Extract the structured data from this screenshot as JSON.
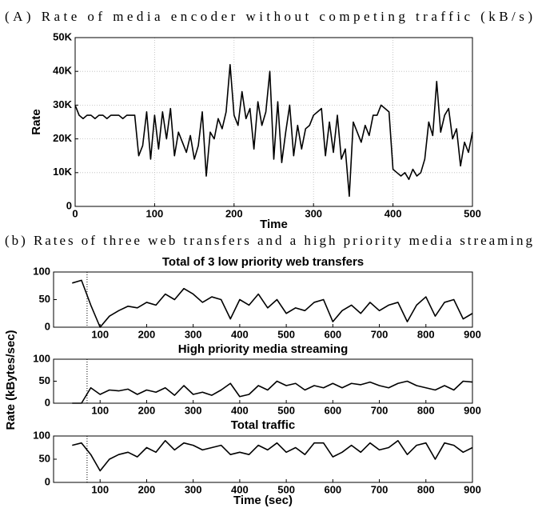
{
  "captions": [
    "(A) Rate of media encoder without competing traffic (kB/s)",
    "(b) Rates of three web transfers and a high priority media streaming"
  ],
  "chart_data": [
    {
      "type": "line",
      "xlabel": "Time",
      "ylabel": "Rate",
      "grid": true,
      "color": "#000000",
      "xlim": [
        0,
        500
      ],
      "xticks": [
        0,
        100,
        200,
        300,
        400,
        500
      ],
      "ylim": [
        0,
        50000
      ],
      "yticks": [
        0,
        {
          "value": 10000,
          "label": "10K"
        },
        {
          "value": 20000,
          "label": "20K"
        },
        {
          "value": 30000,
          "label": "30K"
        },
        {
          "value": 40000,
          "label": "40K"
        },
        {
          "value": 50000,
          "label": "50K"
        }
      ],
      "x": [
        0,
        5,
        10,
        15,
        20,
        25,
        30,
        35,
        40,
        45,
        50,
        55,
        60,
        65,
        70,
        75,
        80,
        85,
        90,
        95,
        100,
        105,
        110,
        115,
        120,
        125,
        130,
        135,
        140,
        145,
        150,
        155,
        160,
        165,
        170,
        175,
        180,
        185,
        190,
        195,
        200,
        205,
        210,
        215,
        220,
        225,
        230,
        235,
        240,
        245,
        250,
        255,
        260,
        265,
        270,
        275,
        280,
        285,
        290,
        295,
        300,
        305,
        310,
        315,
        320,
        325,
        330,
        335,
        340,
        345,
        350,
        355,
        360,
        365,
        370,
        375,
        380,
        385,
        390,
        395,
        400,
        405,
        410,
        415,
        420,
        425,
        430,
        435,
        440,
        445,
        450,
        455,
        460,
        465,
        470,
        475,
        480,
        485,
        490,
        495,
        500
      ],
      "values": [
        30000,
        27000,
        26000,
        27000,
        27000,
        26000,
        27000,
        27000,
        26000,
        27000,
        27000,
        27000,
        26000,
        27000,
        27000,
        27000,
        15000,
        18000,
        28000,
        14000,
        27000,
        17000,
        28000,
        20000,
        29000,
        15000,
        22000,
        19000,
        16000,
        21000,
        14000,
        18000,
        28000,
        9000,
        22000,
        20000,
        26000,
        23000,
        28000,
        42000,
        27000,
        24000,
        34000,
        26000,
        29000,
        17000,
        31000,
        24000,
        28000,
        40000,
        14000,
        31000,
        13000,
        22000,
        30000,
        15000,
        24000,
        17000,
        23000,
        24000,
        27000,
        28000,
        29000,
        15000,
        25000,
        16000,
        27000,
        14000,
        17000,
        3000,
        25000,
        22000,
        19000,
        24000,
        21000,
        27000,
        27000,
        30000,
        29000,
        28000,
        11000,
        10000,
        9000,
        10000,
        8000,
        11000,
        9000,
        10000,
        14000,
        25000,
        21000,
        37000,
        22000,
        27000,
        29000,
        20000,
        23000,
        12000,
        19000,
        16000,
        22000
      ]
    },
    {
      "type": "line",
      "title": "Total of 3 low priority web transfers",
      "color": "#000000",
      "vline": 72,
      "xlim": [
        0,
        900
      ],
      "xticks": [
        100,
        200,
        300,
        400,
        500,
        600,
        700,
        800,
        900
      ],
      "ylim": [
        0,
        100
      ],
      "yticks": [
        0,
        50,
        100
      ],
      "x": [
        40,
        60,
        80,
        100,
        120,
        140,
        160,
        180,
        200,
        220,
        240,
        260,
        280,
        300,
        320,
        340,
        360,
        380,
        400,
        420,
        440,
        460,
        480,
        500,
        520,
        540,
        560,
        580,
        600,
        620,
        640,
        660,
        680,
        700,
        720,
        740,
        760,
        780,
        800,
        820,
        840,
        860,
        880,
        900
      ],
      "values": [
        80,
        85,
        40,
        0,
        20,
        30,
        38,
        35,
        45,
        40,
        60,
        50,
        70,
        60,
        45,
        55,
        50,
        15,
        50,
        40,
        60,
        35,
        50,
        25,
        35,
        30,
        45,
        50,
        10,
        30,
        40,
        25,
        45,
        30,
        40,
        45,
        10,
        40,
        55,
        20,
        45,
        50,
        15,
        25
      ]
    },
    {
      "type": "line",
      "title": "High priority media streaming",
      "ylabel": "Rate (kBytes/sec)",
      "color": "#000000",
      "vline": 72,
      "xlim": [
        0,
        900
      ],
      "xticks": [
        100,
        200,
        300,
        400,
        500,
        600,
        700,
        800,
        900
      ],
      "ylim": [
        0,
        100
      ],
      "yticks": [
        0,
        50,
        100
      ],
      "x": [
        40,
        60,
        80,
        100,
        120,
        140,
        160,
        180,
        200,
        220,
        240,
        260,
        280,
        300,
        320,
        340,
        360,
        380,
        400,
        420,
        440,
        460,
        480,
        500,
        520,
        540,
        560,
        580,
        600,
        620,
        640,
        660,
        680,
        700,
        720,
        740,
        760,
        780,
        800,
        820,
        840,
        860,
        880,
        900
      ],
      "values": [
        0,
        0,
        35,
        20,
        30,
        28,
        32,
        20,
        30,
        25,
        35,
        18,
        40,
        20,
        25,
        18,
        30,
        45,
        15,
        20,
        40,
        30,
        50,
        40,
        45,
        30,
        40,
        35,
        45,
        35,
        45,
        42,
        48,
        40,
        35,
        45,
        50,
        40,
        35,
        30,
        40,
        30,
        50,
        48
      ]
    },
    {
      "type": "line",
      "title": "Total traffic",
      "xlabel": "Time (sec)",
      "color": "#000000",
      "vline": 72,
      "xlim": [
        0,
        900
      ],
      "xticks": [
        100,
        200,
        300,
        400,
        500,
        600,
        700,
        800,
        900
      ],
      "ylim": [
        0,
        100
      ],
      "yticks": [
        0,
        50,
        100
      ],
      "x": [
        40,
        60,
        80,
        100,
        120,
        140,
        160,
        180,
        200,
        220,
        240,
        260,
        280,
        300,
        320,
        340,
        360,
        380,
        400,
        420,
        440,
        460,
        480,
        500,
        520,
        540,
        560,
        580,
        600,
        620,
        640,
        660,
        680,
        700,
        720,
        740,
        760,
        780,
        800,
        820,
        840,
        860,
        880,
        900
      ],
      "values": [
        80,
        85,
        60,
        25,
        50,
        60,
        65,
        55,
        75,
        65,
        90,
        70,
        85,
        80,
        70,
        75,
        80,
        60,
        65,
        60,
        80,
        70,
        85,
        65,
        75,
        60,
        85,
        85,
        55,
        65,
        80,
        65,
        85,
        70,
        75,
        90,
        60,
        80,
        85,
        50,
        85,
        80,
        65,
        75
      ]
    }
  ]
}
